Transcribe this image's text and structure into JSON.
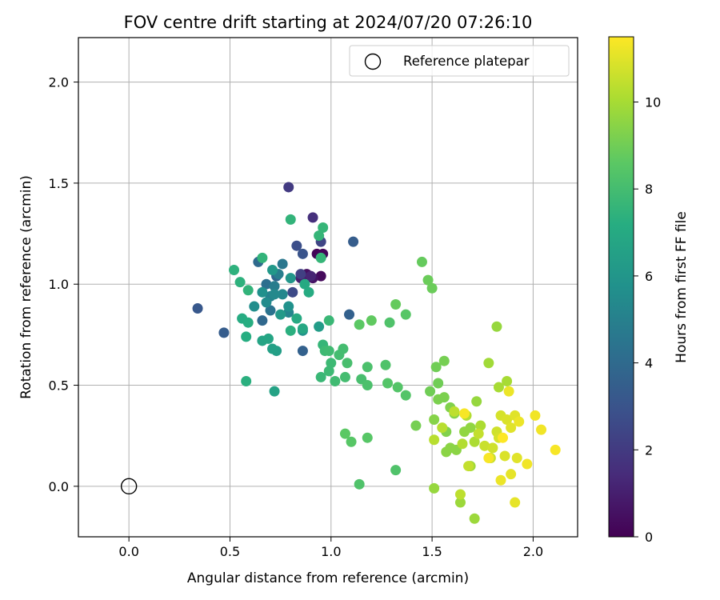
{
  "chart_data": {
    "type": "scatter",
    "title": "FOV centre drift starting at 2024/07/20 07:26:10",
    "xlabel": "Angular distance from reference (arcmin)",
    "ylabel": "Rotation from reference (arcmin)",
    "xlim": [
      -0.25,
      2.22
    ],
    "ylim": [
      -0.25,
      2.22
    ],
    "xticks": [
      "0.0",
      "0.5",
      "1.0",
      "1.5",
      "2.0"
    ],
    "yticks": [
      "0.0",
      "0.5",
      "1.0",
      "1.5",
      "2.0"
    ],
    "grid": true,
    "legend": {
      "position": "top-right",
      "entries": [
        "Reference platepar"
      ]
    },
    "reference_point": {
      "x": 0.0,
      "y": 0.0
    },
    "colorbar": {
      "label": "Hours from first FF file",
      "range": [
        0,
        11.5
      ],
      "ticks": [
        "0",
        "2",
        "4",
        "6",
        "8",
        "10"
      ],
      "colormap": "viridis"
    },
    "points": [
      {
        "x": 0.93,
        "y": 1.15,
        "h": 0.1
      },
      {
        "x": 0.96,
        "y": 1.15,
        "h": 0.2
      },
      {
        "x": 0.95,
        "y": 1.04,
        "h": 0.3
      },
      {
        "x": 0.88,
        "y": 1.05,
        "h": 0.5
      },
      {
        "x": 0.91,
        "y": 1.03,
        "h": 0.6
      },
      {
        "x": 0.85,
        "y": 1.03,
        "h": 1.0
      },
      {
        "x": 0.9,
        "y": 1.04,
        "h": 1.2
      },
      {
        "x": 0.91,
        "y": 1.33,
        "h": 1.6
      },
      {
        "x": 0.79,
        "y": 1.48,
        "h": 2.0
      },
      {
        "x": 0.85,
        "y": 1.05,
        "h": 2.2
      },
      {
        "x": 0.95,
        "y": 1.21,
        "h": 2.4
      },
      {
        "x": 0.81,
        "y": 0.96,
        "h": 2.6
      },
      {
        "x": 0.83,
        "y": 1.19,
        "h": 2.8
      },
      {
        "x": 0.34,
        "y": 0.88,
        "h": 3.2
      },
      {
        "x": 0.47,
        "y": 0.76,
        "h": 3.4
      },
      {
        "x": 0.86,
        "y": 1.15,
        "h": 3.0
      },
      {
        "x": 1.11,
        "y": 1.21,
        "h": 3.4
      },
      {
        "x": 1.09,
        "y": 0.85,
        "h": 3.6
      },
      {
        "x": 0.86,
        "y": 0.67,
        "h": 3.6
      },
      {
        "x": 0.73,
        "y": 1.04,
        "h": 3.8
      },
      {
        "x": 0.66,
        "y": 0.82,
        "h": 3.9
      },
      {
        "x": 0.64,
        "y": 1.11,
        "h": 4.0
      },
      {
        "x": 0.68,
        "y": 1.0,
        "h": 4.2
      },
      {
        "x": 0.7,
        "y": 0.87,
        "h": 4.4
      },
      {
        "x": 0.76,
        "y": 1.1,
        "h": 4.6
      },
      {
        "x": 0.72,
        "y": 0.99,
        "h": 4.8
      },
      {
        "x": 0.74,
        "y": 1.05,
        "h": 4.9
      },
      {
        "x": 0.7,
        "y": 0.94,
        "h": 5.0
      },
      {
        "x": 0.79,
        "y": 0.86,
        "h": 5.2
      },
      {
        "x": 0.76,
        "y": 0.95,
        "h": 5.3
      },
      {
        "x": 0.72,
        "y": 0.95,
        "h": 5.4
      },
      {
        "x": 0.68,
        "y": 0.91,
        "h": 5.5
      },
      {
        "x": 0.62,
        "y": 0.89,
        "h": 5.6
      },
      {
        "x": 0.66,
        "y": 0.96,
        "h": 5.7
      },
      {
        "x": 0.79,
        "y": 0.89,
        "h": 5.8
      },
      {
        "x": 0.86,
        "y": 0.77,
        "h": 5.9
      },
      {
        "x": 0.8,
        "y": 1.03,
        "h": 6.0
      },
      {
        "x": 0.71,
        "y": 1.07,
        "h": 6.1
      },
      {
        "x": 0.75,
        "y": 0.85,
        "h": 6.2
      },
      {
        "x": 0.94,
        "y": 0.79,
        "h": 6.3
      },
      {
        "x": 0.73,
        "y": 0.67,
        "h": 6.4
      },
      {
        "x": 0.71,
        "y": 0.68,
        "h": 6.5
      },
      {
        "x": 0.72,
        "y": 0.47,
        "h": 6.6
      },
      {
        "x": 0.66,
        "y": 0.72,
        "h": 6.7
      },
      {
        "x": 0.69,
        "y": 0.73,
        "h": 6.8
      },
      {
        "x": 0.86,
        "y": 0.78,
        "h": 6.9
      },
      {
        "x": 0.83,
        "y": 0.83,
        "h": 7.0
      },
      {
        "x": 0.87,
        "y": 1.0,
        "h": 7.0
      },
      {
        "x": 0.89,
        "y": 0.96,
        "h": 7.1
      },
      {
        "x": 0.56,
        "y": 0.83,
        "h": 7.1
      },
      {
        "x": 0.59,
        "y": 0.81,
        "h": 7.2
      },
      {
        "x": 0.58,
        "y": 0.74,
        "h": 7.2
      },
      {
        "x": 0.8,
        "y": 0.77,
        "h": 7.3
      },
      {
        "x": 0.58,
        "y": 0.52,
        "h": 7.3
      },
      {
        "x": 0.55,
        "y": 1.01,
        "h": 7.4
      },
      {
        "x": 0.52,
        "y": 1.07,
        "h": 7.4
      },
      {
        "x": 0.59,
        "y": 0.97,
        "h": 7.5
      },
      {
        "x": 0.66,
        "y": 1.13,
        "h": 7.5
      },
      {
        "x": 0.8,
        "y": 1.32,
        "h": 7.5
      },
      {
        "x": 0.96,
        "y": 1.28,
        "h": 7.6
      },
      {
        "x": 0.94,
        "y": 1.24,
        "h": 7.6
      },
      {
        "x": 0.95,
        "y": 1.13,
        "h": 7.6
      },
      {
        "x": 0.96,
        "y": 0.7,
        "h": 7.6
      },
      {
        "x": 0.99,
        "y": 0.82,
        "h": 7.7
      },
      {
        "x": 0.95,
        "y": 0.54,
        "h": 7.7
      },
      {
        "x": 0.97,
        "y": 0.67,
        "h": 7.8
      },
      {
        "x": 0.99,
        "y": 0.57,
        "h": 7.8
      },
      {
        "x": 1.0,
        "y": 0.61,
        "h": 7.8
      },
      {
        "x": 0.99,
        "y": 0.67,
        "h": 7.9
      },
      {
        "x": 1.02,
        "y": 0.52,
        "h": 7.9
      },
      {
        "x": 1.04,
        "y": 0.65,
        "h": 8.0
      },
      {
        "x": 1.06,
        "y": 0.68,
        "h": 8.0
      },
      {
        "x": 1.07,
        "y": 0.54,
        "h": 8.0
      },
      {
        "x": 1.08,
        "y": 0.61,
        "h": 8.1
      },
      {
        "x": 1.15,
        "y": 0.53,
        "h": 8.1
      },
      {
        "x": 1.18,
        "y": 0.5,
        "h": 8.2
      },
      {
        "x": 1.18,
        "y": 0.59,
        "h": 8.2
      },
      {
        "x": 1.27,
        "y": 0.6,
        "h": 8.3
      },
      {
        "x": 1.29,
        "y": 0.81,
        "h": 8.3
      },
      {
        "x": 1.14,
        "y": 0.01,
        "h": 8.3
      },
      {
        "x": 1.32,
        "y": 0.08,
        "h": 8.3
      },
      {
        "x": 1.28,
        "y": 0.51,
        "h": 8.4
      },
      {
        "x": 1.33,
        "y": 0.49,
        "h": 8.4
      },
      {
        "x": 1.37,
        "y": 0.45,
        "h": 8.4
      },
      {
        "x": 1.37,
        "y": 0.85,
        "h": 8.5
      },
      {
        "x": 1.18,
        "y": 0.24,
        "h": 8.5
      },
      {
        "x": 1.1,
        "y": 0.22,
        "h": 8.5
      },
      {
        "x": 1.07,
        "y": 0.26,
        "h": 8.6
      },
      {
        "x": 1.14,
        "y": 0.8,
        "h": 8.6
      },
      {
        "x": 1.2,
        "y": 0.82,
        "h": 8.7
      },
      {
        "x": 1.32,
        "y": 0.9,
        "h": 8.8
      },
      {
        "x": 1.45,
        "y": 1.11,
        "h": 8.8
      },
      {
        "x": 1.48,
        "y": 1.02,
        "h": 8.9
      },
      {
        "x": 1.5,
        "y": 0.98,
        "h": 8.9
      },
      {
        "x": 1.52,
        "y": 0.59,
        "h": 9.0
      },
      {
        "x": 1.53,
        "y": 0.51,
        "h": 9.0
      },
      {
        "x": 1.49,
        "y": 0.47,
        "h": 9.0
      },
      {
        "x": 1.42,
        "y": 0.3,
        "h": 9.1
      },
      {
        "x": 1.56,
        "y": 0.62,
        "h": 9.1
      },
      {
        "x": 1.53,
        "y": 0.43,
        "h": 9.2
      },
      {
        "x": 1.56,
        "y": 0.44,
        "h": 9.2
      },
      {
        "x": 1.59,
        "y": 0.39,
        "h": 9.3
      },
      {
        "x": 1.57,
        "y": 0.27,
        "h": 9.3
      },
      {
        "x": 1.61,
        "y": 0.36,
        "h": 9.4
      },
      {
        "x": 1.51,
        "y": 0.33,
        "h": 9.4
      },
      {
        "x": 1.57,
        "y": 0.17,
        "h": 9.5
      },
      {
        "x": 1.59,
        "y": 0.19,
        "h": 9.5
      },
      {
        "x": 1.62,
        "y": 0.18,
        "h": 9.5
      },
      {
        "x": 1.66,
        "y": 0.27,
        "h": 9.6
      },
      {
        "x": 1.69,
        "y": 0.29,
        "h": 9.6
      },
      {
        "x": 1.72,
        "y": 0.42,
        "h": 9.7
      },
      {
        "x": 1.82,
        "y": 0.79,
        "h": 9.7
      },
      {
        "x": 1.51,
        "y": -0.01,
        "h": 9.7
      },
      {
        "x": 1.64,
        "y": -0.08,
        "h": 9.8
      },
      {
        "x": 1.71,
        "y": -0.16,
        "h": 9.8
      },
      {
        "x": 1.69,
        "y": 0.1,
        "h": 9.9
      },
      {
        "x": 1.78,
        "y": 0.61,
        "h": 9.9
      },
      {
        "x": 1.83,
        "y": 0.49,
        "h": 10.0
      },
      {
        "x": 1.87,
        "y": 0.52,
        "h": 10.0
      },
      {
        "x": 1.74,
        "y": 0.3,
        "h": 10.1
      },
      {
        "x": 1.71,
        "y": 0.22,
        "h": 10.1
      },
      {
        "x": 1.67,
        "y": 0.35,
        "h": 10.2
      },
      {
        "x": 1.65,
        "y": 0.21,
        "h": 10.2
      },
      {
        "x": 1.51,
        "y": 0.23,
        "h": 10.3
      },
      {
        "x": 1.55,
        "y": 0.29,
        "h": 10.3
      },
      {
        "x": 1.61,
        "y": 0.37,
        "h": 10.4
      },
      {
        "x": 1.64,
        "y": -0.04,
        "h": 10.4
      },
      {
        "x": 1.68,
        "y": 0.1,
        "h": 10.5
      },
      {
        "x": 1.73,
        "y": 0.26,
        "h": 10.5
      },
      {
        "x": 1.76,
        "y": 0.2,
        "h": 10.6
      },
      {
        "x": 1.79,
        "y": 0.14,
        "h": 10.6
      },
      {
        "x": 1.8,
        "y": 0.19,
        "h": 10.7
      },
      {
        "x": 1.82,
        "y": 0.27,
        "h": 10.7
      },
      {
        "x": 1.83,
        "y": 0.24,
        "h": 10.8
      },
      {
        "x": 1.84,
        "y": 0.35,
        "h": 10.8
      },
      {
        "x": 1.86,
        "y": 0.15,
        "h": 10.9
      },
      {
        "x": 1.87,
        "y": 0.33,
        "h": 10.9
      },
      {
        "x": 1.89,
        "y": 0.29,
        "h": 11.0
      },
      {
        "x": 1.91,
        "y": 0.35,
        "h": 11.0
      },
      {
        "x": 1.92,
        "y": 0.14,
        "h": 11.0
      },
      {
        "x": 1.91,
        "y": -0.08,
        "h": 11.1
      },
      {
        "x": 1.89,
        "y": 0.06,
        "h": 11.1
      },
      {
        "x": 1.84,
        "y": 0.03,
        "h": 11.2
      },
      {
        "x": 1.88,
        "y": 0.47,
        "h": 11.2
      },
      {
        "x": 1.93,
        "y": 0.32,
        "h": 11.2
      },
      {
        "x": 1.97,
        "y": 0.11,
        "h": 11.3
      },
      {
        "x": 2.01,
        "y": 0.35,
        "h": 11.3
      },
      {
        "x": 2.04,
        "y": 0.28,
        "h": 11.3
      },
      {
        "x": 2.11,
        "y": 0.18,
        "h": 11.4
      },
      {
        "x": 1.66,
        "y": 0.36,
        "h": 11.4
      },
      {
        "x": 1.78,
        "y": 0.14,
        "h": 11.4
      },
      {
        "x": 1.85,
        "y": 0.24,
        "h": 11.5
      }
    ]
  }
}
